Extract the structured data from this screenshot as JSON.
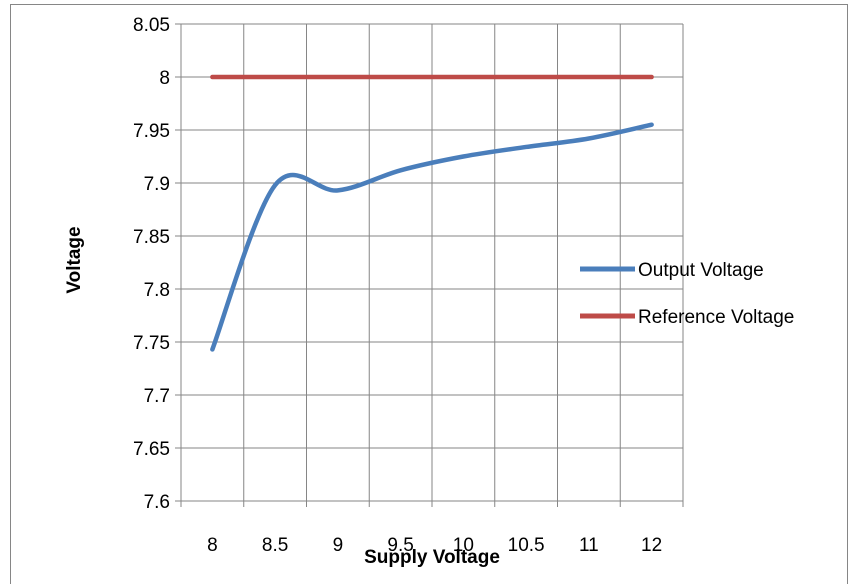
{
  "chart_data": {
    "type": "line",
    "title": "",
    "xlabel": "Supply Voltage",
    "ylabel": "Voltage",
    "x": [
      8,
      8.5,
      9,
      9.5,
      10,
      10.5,
      11,
      12
    ],
    "x_tick_labels": [
      "8",
      "8.5",
      "9",
      "9.5",
      "10",
      "10.5",
      "11",
      "12"
    ],
    "y_tick_labels": [
      "8.05",
      "8",
      "7.95",
      "7.9",
      "7.85",
      "7.8",
      "7.75",
      "7.7",
      "7.65",
      "7.6"
    ],
    "ylim": [
      7.6,
      8.05
    ],
    "grid": true,
    "legend_position": "right",
    "series": [
      {
        "name": "Output Voltage",
        "color": "#4a7ebb",
        "values": [
          7.743,
          7.898,
          7.893,
          7.912,
          7.925,
          7.934,
          7.942,
          7.955
        ]
      },
      {
        "name": "Reference Voltage",
        "color": "#be4b48",
        "values": [
          8,
          8,
          8,
          8,
          8,
          8,
          8,
          8
        ]
      }
    ]
  }
}
